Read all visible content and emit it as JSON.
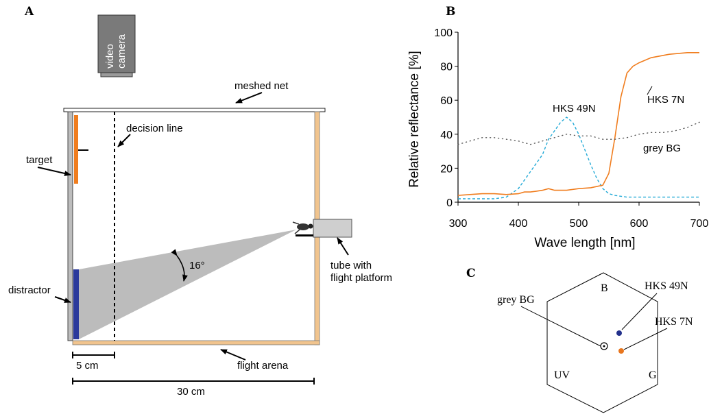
{
  "panel_a": {
    "letter": "A",
    "camera_label_1": "video",
    "camera_label_2": "camera",
    "meshed_net": "meshed net",
    "decision_line": "decision line",
    "target": "target",
    "distractor": "distractor",
    "angle": "16°",
    "tube_1": "tube with",
    "tube_2": "flight platform",
    "flight_arena": "flight arena",
    "scale_small": "5 cm",
    "scale_large": "30 cm",
    "colors": {
      "target": "#f07d1e",
      "distractor": "#2b3a9c",
      "arena": "#f1c48e",
      "cone": "#bcbcbc",
      "camera": "#7a7a7a"
    }
  },
  "panel_b": {
    "letter": "B",
    "chart_data": {
      "type": "line",
      "xlabel": "Wave length [nm]",
      "ylabel": "Relative reflectance [%]",
      "xlim": [
        300,
        700
      ],
      "ylim": [
        0,
        100
      ],
      "xticks": [
        "300",
        "400",
        "500",
        "600",
        "700"
      ],
      "yticks": [
        "0",
        "20",
        "40",
        "60",
        "80",
        "100"
      ],
      "series": [
        {
          "name": "HKS 49N",
          "color": "#21a9d6",
          "style": "dashed",
          "x": [
            300,
            320,
            340,
            360,
            380,
            400,
            420,
            440,
            450,
            460,
            470,
            480,
            490,
            500,
            510,
            520,
            530,
            540,
            550,
            560,
            580,
            600,
            620,
            650,
            680,
            700
          ],
          "y": [
            2,
            2,
            2,
            2,
            3,
            8,
            18,
            28,
            37,
            42,
            47,
            50,
            47,
            40,
            31,
            22,
            14,
            8,
            5,
            4,
            3,
            3,
            3,
            3,
            3,
            3
          ]
        },
        {
          "name": "HKS 7N",
          "color": "#f07d1e",
          "style": "solid",
          "x": [
            300,
            320,
            340,
            360,
            380,
            400,
            410,
            420,
            430,
            440,
            450,
            460,
            470,
            480,
            500,
            520,
            540,
            550,
            560,
            570,
            580,
            590,
            600,
            620,
            650,
            680,
            700
          ],
          "y": [
            4,
            4.5,
            5,
            5,
            4.5,
            5,
            6,
            6,
            6.5,
            7,
            8,
            7,
            7,
            7,
            8,
            8.5,
            10,
            17,
            38,
            62,
            76,
            80,
            82,
            85,
            87,
            88,
            88
          ],
          "label_text": "HKS 7N"
        },
        {
          "name": "grey BG",
          "color": "#555555",
          "style": "dotted",
          "x": [
            300,
            320,
            340,
            360,
            380,
            400,
            420,
            440,
            460,
            480,
            500,
            520,
            540,
            560,
            580,
            600,
            620,
            640,
            660,
            680,
            700
          ],
          "y": [
            34,
            36,
            38,
            38,
            37,
            36,
            34,
            36,
            38,
            40,
            39,
            39,
            37,
            37,
            38,
            40,
            41,
            41,
            42,
            44,
            47
          ]
        }
      ]
    }
  },
  "panel_c": {
    "letter": "C",
    "vertex_b": "B",
    "vertex_uv": "UV",
    "vertex_g": "G",
    "grey_bg": "grey BG",
    "hks49": "HKS 49N",
    "hks7": "HKS 7N",
    "colors": {
      "hks49": "#23318c",
      "hks7": "#e8761e"
    }
  }
}
